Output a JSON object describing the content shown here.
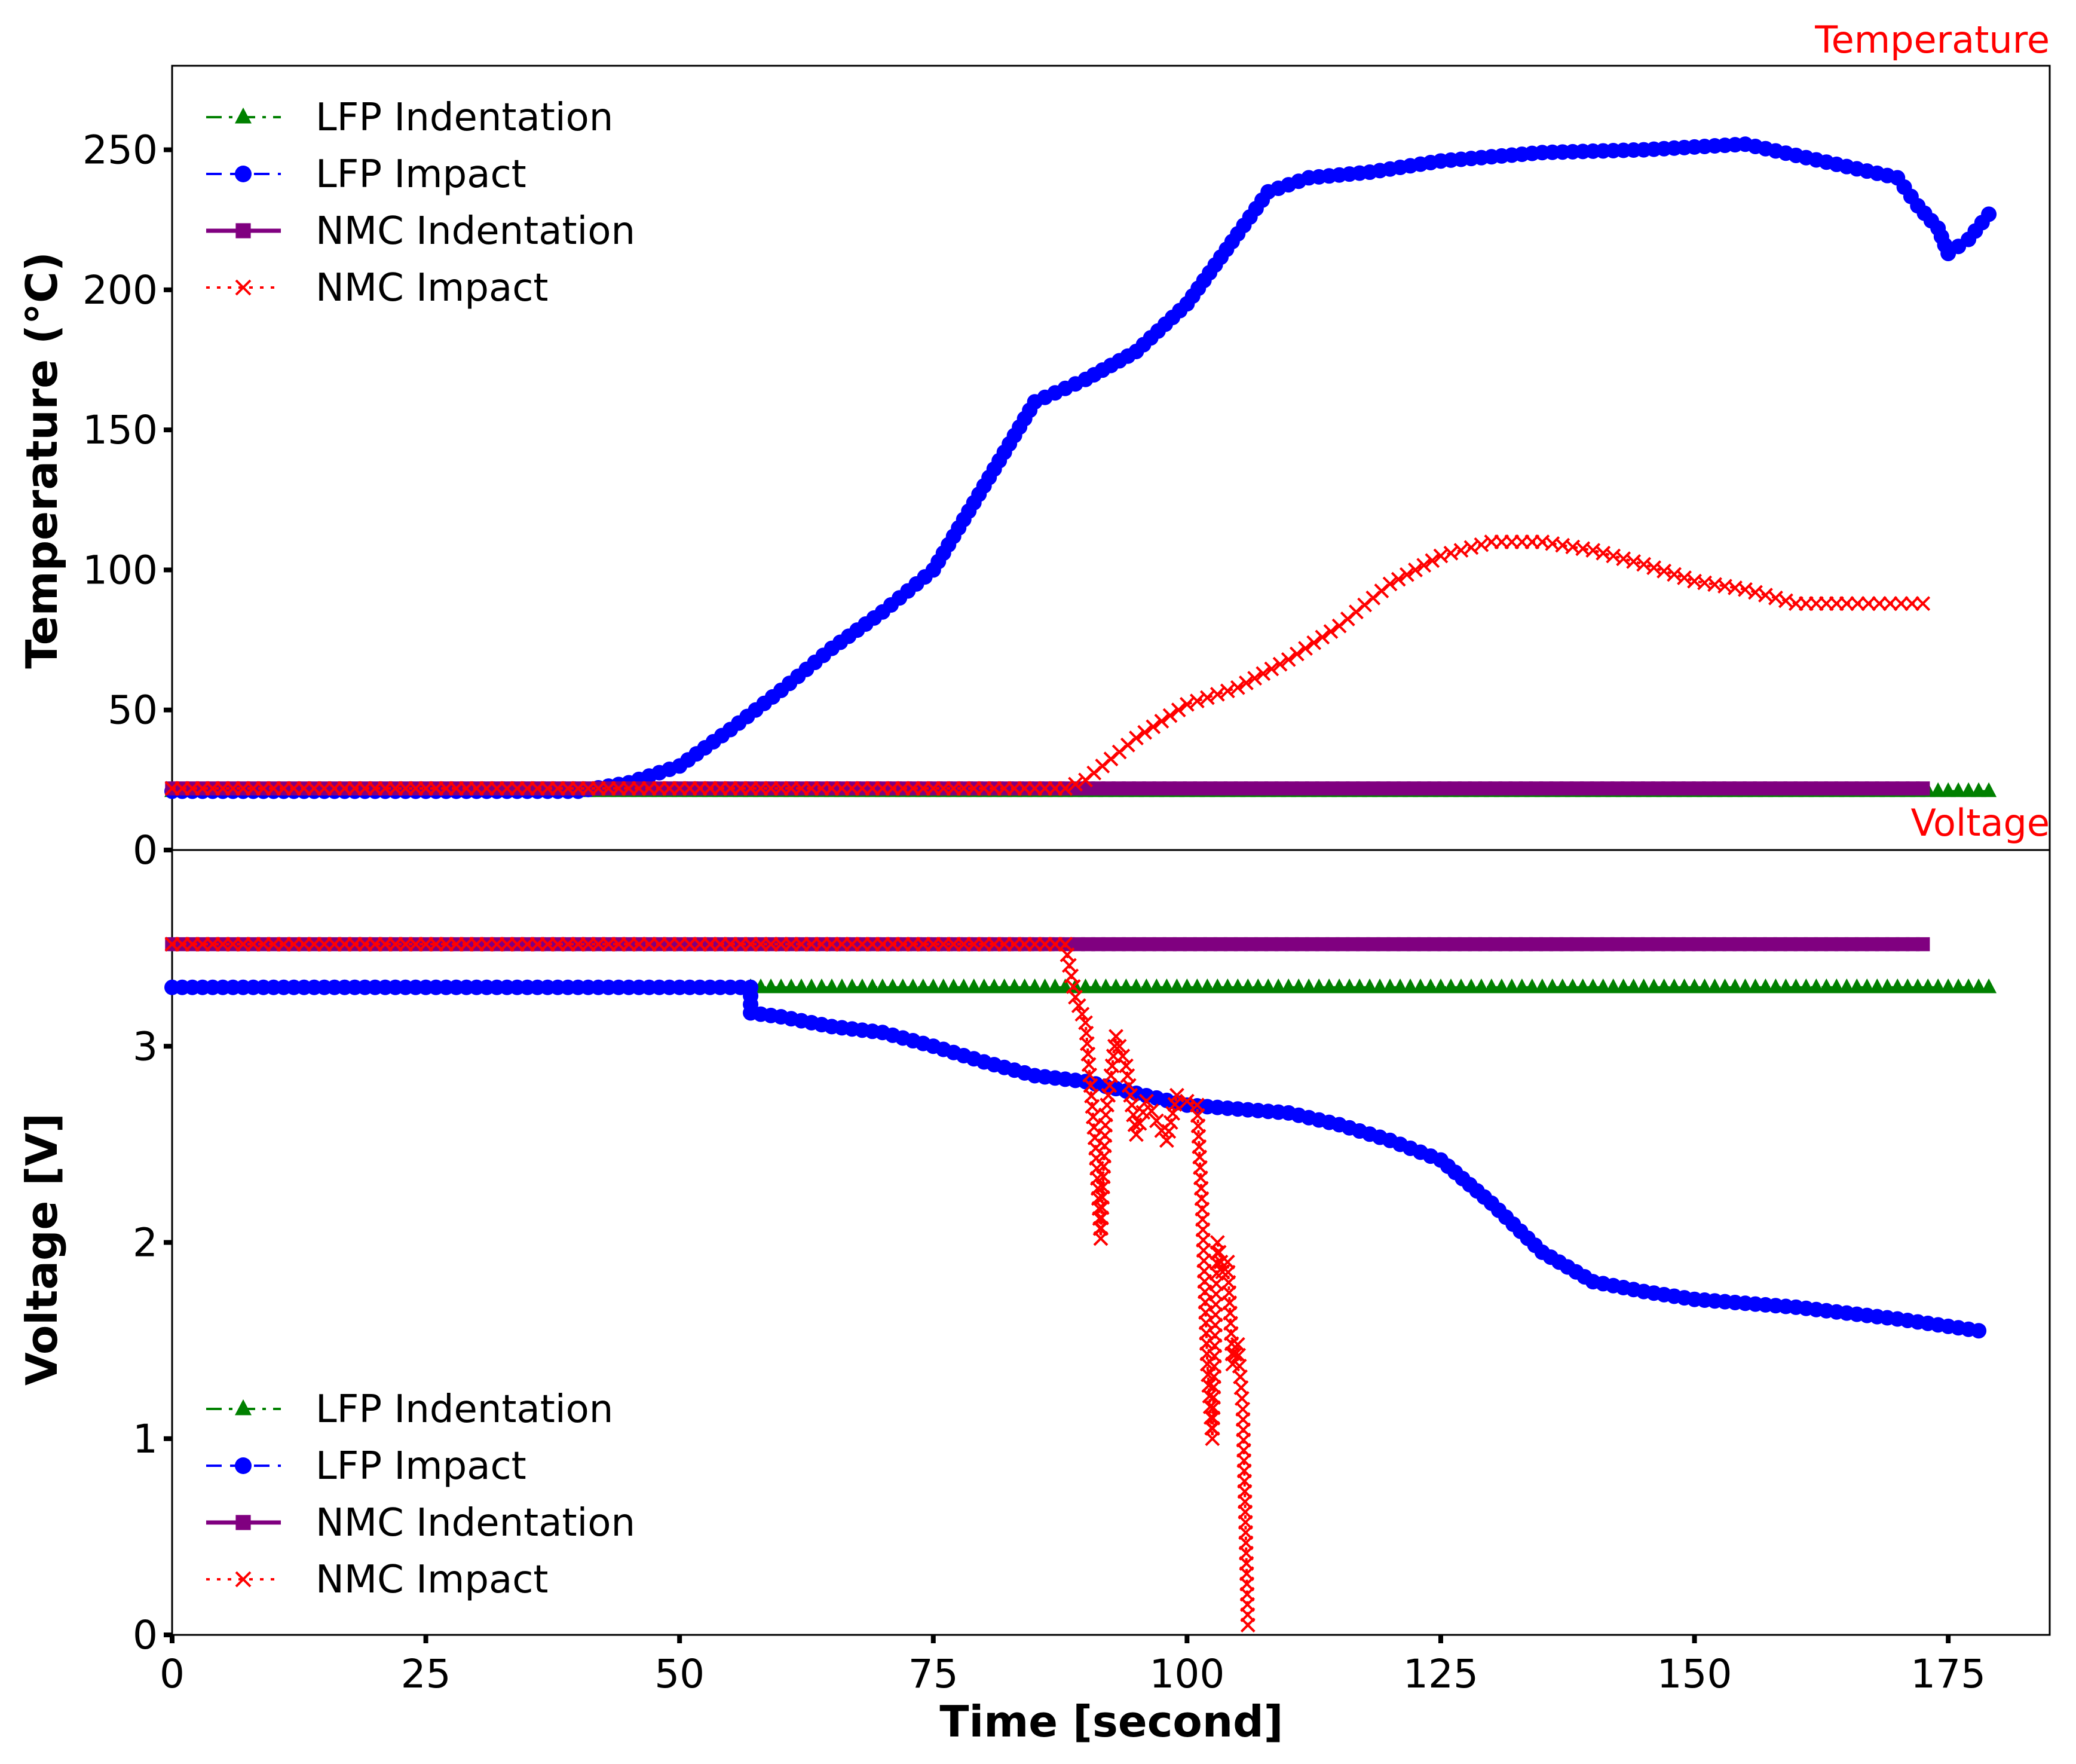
{
  "chart_data": [
    {
      "panel": "top",
      "type": "line",
      "label": "Temperature",
      "ylabel": "Temperature (°C)",
      "xlim": [
        0,
        185
      ],
      "ylim": [
        0,
        280
      ],
      "yticks": [
        0,
        50,
        100,
        150,
        200,
        250
      ],
      "legend_position": "top-left",
      "series": [
        {
          "name": "LFP Indentation",
          "color": "#008000",
          "marker": "triangle",
          "linestyle": "dashdot",
          "x": [
            0,
            172,
            179
          ],
          "y": [
            21,
            21,
            21
          ]
        },
        {
          "name": "LFP Impact",
          "color": "#0000ff",
          "marker": "circle",
          "linestyle": "dashed",
          "x": [
            0,
            40,
            45,
            50,
            55,
            60,
            65,
            70,
            75,
            80,
            85,
            90,
            95,
            100,
            105,
            108,
            112,
            118,
            125,
            135,
            145,
            150,
            155,
            160,
            165,
            170,
            172,
            174,
            175,
            177,
            179
          ],
          "y": [
            21,
            21,
            24,
            30,
            43,
            57,
            72,
            85,
            100,
            130,
            160,
            168,
            178,
            195,
            220,
            235,
            240,
            242,
            246,
            249,
            250,
            251,
            252,
            248,
            244,
            240,
            230,
            222,
            213,
            218,
            227
          ]
        },
        {
          "name": "NMC Indentation",
          "color": "#800080",
          "marker": "square",
          "linestyle": "solid",
          "x": [
            0,
            172.5
          ],
          "y": [
            22,
            22
          ]
        },
        {
          "name": "NMC Impact",
          "color": "#ff0000",
          "marker": "x",
          "linestyle": "dotted",
          "x": [
            0,
            88,
            90,
            95,
            100,
            105,
            110,
            115,
            120,
            125,
            130,
            135,
            140,
            145,
            150,
            155,
            160,
            165,
            172.5
          ],
          "y": [
            22,
            22,
            25,
            40,
            52,
            58,
            68,
            80,
            95,
            105,
            110,
            110,
            107,
            102,
            96,
            93,
            88,
            88,
            88
          ]
        }
      ]
    },
    {
      "panel": "bottom",
      "type": "line",
      "label": "Voltage",
      "ylabel": "Voltage [V]",
      "xlabel": "Time [second]",
      "xlim": [
        0,
        185
      ],
      "ylim": [
        0,
        4
      ],
      "xticks": [
        0,
        25,
        50,
        75,
        100,
        125,
        150,
        175
      ],
      "yticks": [
        0,
        1,
        2,
        3
      ],
      "legend_position": "bottom-left",
      "series": [
        {
          "name": "LFP Indentation",
          "color": "#008000",
          "marker": "triangle",
          "linestyle": "dashdot",
          "x": [
            57,
            179
          ],
          "y": [
            3.3,
            3.3
          ]
        },
        {
          "name": "LFP Impact",
          "color": "#0000ff",
          "marker": "circle",
          "linestyle": "dashed",
          "x": [
            0,
            57,
            57,
            60,
            65,
            70,
            75,
            80,
            85,
            90,
            95,
            100,
            105,
            110,
            115,
            120,
            125,
            130,
            135,
            140,
            145,
            150,
            160,
            170,
            178
          ],
          "y": [
            3.3,
            3.3,
            3.17,
            3.15,
            3.1,
            3.07,
            3.0,
            2.92,
            2.85,
            2.82,
            2.76,
            2.7,
            2.68,
            2.66,
            2.6,
            2.52,
            2.42,
            2.2,
            1.95,
            1.8,
            1.75,
            1.71,
            1.67,
            1.61,
            1.55
          ]
        },
        {
          "name": "NMC Indentation",
          "color": "#800080",
          "marker": "square",
          "linestyle": "solid",
          "x": [
            0,
            172.5
          ],
          "y": [
            3.52,
            3.52
          ]
        },
        {
          "name": "NMC Impact",
          "color": "#ff0000",
          "marker": "x",
          "linestyle": "dotted",
          "x": [
            0,
            88,
            89,
            90,
            91,
            91.5,
            92,
            93,
            94,
            95,
            96,
            97,
            98,
            99,
            100,
            101,
            101.5,
            102,
            102.5,
            103,
            103.5,
            104,
            104.5,
            105,
            105.5,
            106
          ],
          "y": [
            3.52,
            3.52,
            3.25,
            3.12,
            2.48,
            2.02,
            2.65,
            3.05,
            2.9,
            2.55,
            2.72,
            2.62,
            2.52,
            2.75,
            2.72,
            2.7,
            2.17,
            1.38,
            1.0,
            2.0,
            1.85,
            1.9,
            1.38,
            1.48,
            1.15,
            0.05
          ]
        }
      ]
    }
  ]
}
